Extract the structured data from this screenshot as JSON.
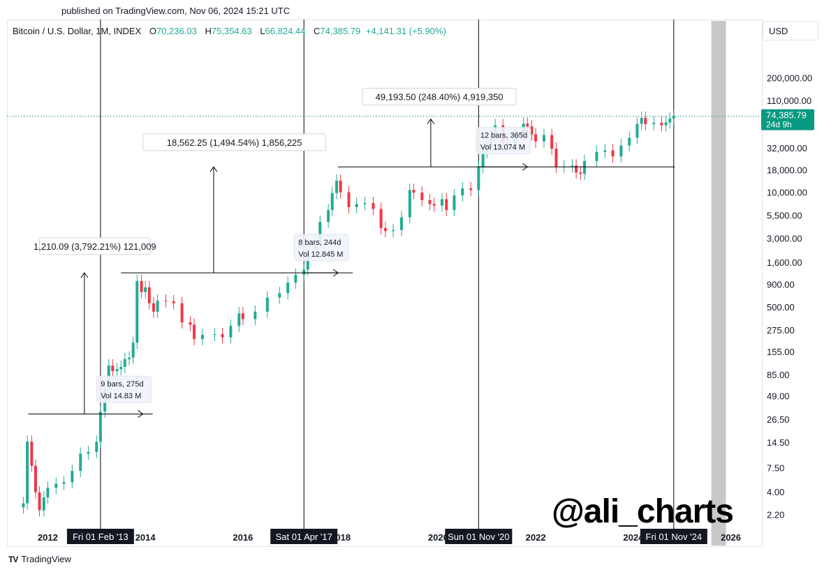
{
  "header": {
    "published": "published on TradingView.com, Nov 06, 2024 15:21 UTC"
  },
  "legend": {
    "symbol": "Bitcoin / U.S. Dollar, 1M, INDEX",
    "open_label": "O",
    "open": "70,236.03",
    "high_label": "H",
    "high": "75,354.63",
    "low_label": "L",
    "low": "66,824.44",
    "close_label": "C",
    "close": "74,385.79",
    "change": "+4,141.31 (+5.90%)"
  },
  "currency": "USD",
  "watermark": "@ali_charts",
  "brand": {
    "logo": "TV",
    "name": "TradingView"
  },
  "colors": {
    "up": "#22ab94",
    "down": "#f23645",
    "accent": "#089981",
    "line": "#000000",
    "shade": "#c8c8c8"
  },
  "chart_data": {
    "type": "candlestick",
    "scale": "log",
    "ylim": [
      1.6,
      520000
    ],
    "xlim": [
      2011.45,
      2026.45
    ],
    "grid": false,
    "current_price": {
      "value": 74385.79,
      "label": "74,385.79",
      "countdown": "24d 9h"
    },
    "x_ticks": [
      {
        "label": "2012",
        "x": 2012.0
      },
      {
        "label": "2014",
        "x": 2014.0
      },
      {
        "label": "2016",
        "x": 2016.0
      },
      {
        "label": "2018",
        "x": 2018.0
      },
      {
        "label": "2020",
        "x": 2020.0
      },
      {
        "label": "2022",
        "x": 2022.0
      },
      {
        "label": "2024",
        "x": 2024.0
      },
      {
        "label": "2026",
        "x": 2026.0
      }
    ],
    "y_ticks": [
      {
        "label": "200,000.00",
        "value": 200000
      },
      {
        "label": "110,000.00",
        "value": 110000
      },
      {
        "label": "32,000.00",
        "value": 32000
      },
      {
        "label": "18,000.00",
        "value": 18000
      },
      {
        "label": "10,000.00",
        "value": 10000
      },
      {
        "label": "5,500.00",
        "value": 5500
      },
      {
        "label": "3,000.00",
        "value": 3000
      },
      {
        "label": "1,600.00",
        "value": 1600
      },
      {
        "label": "900.00",
        "value": 900
      },
      {
        "label": "500.00",
        "value": 500
      },
      {
        "label": "275.00",
        "value": 275
      },
      {
        "label": "155.00",
        "value": 155
      },
      {
        "label": "85.00",
        "value": 85
      },
      {
        "label": "49.00",
        "value": 49
      },
      {
        "label": "26.50",
        "value": 26.5
      },
      {
        "label": "14.50",
        "value": 14.5
      },
      {
        "label": "7.50",
        "value": 7.5
      },
      {
        "label": "4.00",
        "value": 4
      },
      {
        "label": "2.20",
        "value": 2.2
      }
    ],
    "vlines": [
      {
        "x": 2013.08,
        "label": "Fri 01 Feb '13"
      },
      {
        "x": 2017.25,
        "label": "Sat 01 Apr '17"
      },
      {
        "x": 2020.83,
        "label": "Sun 01 Nov '20"
      },
      {
        "x": 2024.83,
        "label": "Fri 01 Nov '24"
      }
    ],
    "shade_band": {
      "x0": 2025.6,
      "x1": 2025.9
    },
    "projections": [
      {
        "label": "1,210.09 (3,792.21%) 121,009",
        "x0": 2011.6,
        "x1": 2014.15,
        "y_low": 31,
        "y_high": 1241,
        "arrow_x": 2012.75,
        "box_x0": 2011.83,
        "box_x1": 2014.1,
        "box_y": 2450
      },
      {
        "label": "18,562.25 (1,494.54%) 1,856,225",
        "x0": 2013.5,
        "x1": 2018.25,
        "y_low": 1241,
        "y_high": 19800,
        "arrow_x": 2015.4,
        "box_x0": 2013.95,
        "box_x1": 2017.7,
        "box_y": 37000
      },
      {
        "label": "49,193.50 (248.40%) 4,919,350",
        "x0": 2017.95,
        "x1": 2024.85,
        "y_low": 19800,
        "y_high": 69000,
        "arrow_x": 2019.85,
        "box_x0": 2018.45,
        "box_x1": 2021.6,
        "box_y": 122000
      }
    ],
    "measures": [
      {
        "bars": "9 bars, 275d",
        "vol": "Vol 14.83 M",
        "x0": 2013.08,
        "x1": 2013.95,
        "y": 31,
        "box_x0": 2013.0,
        "box_y": 60
      },
      {
        "bars": "8 bars, 244d",
        "vol": "Vol 12.845 M",
        "x0": 2017.25,
        "x1": 2017.95,
        "y": 1241,
        "box_x0": 2017.05,
        "box_y": 2450
      },
      {
        "bars": "12 bars, 365d",
        "vol": "Vol 13.074 M",
        "x0": 2020.83,
        "x1": 2021.83,
        "y": 19800,
        "box_x0": 2020.78,
        "box_y": 40000
      }
    ],
    "candles_yearly_anchors": [
      [
        2011.5,
        3.0
      ],
      [
        2011.58,
        15
      ],
      [
        2011.67,
        8
      ],
      [
        2011.75,
        4
      ],
      [
        2011.83,
        2.5
      ],
      [
        2011.92,
        3.5
      ],
      [
        2012.0,
        4.5
      ],
      [
        2012.17,
        5
      ],
      [
        2012.33,
        5.2
      ],
      [
        2012.5,
        7
      ],
      [
        2012.67,
        11
      ],
      [
        2012.83,
        11.5
      ],
      [
        2013.0,
        15
      ],
      [
        2013.08,
        33
      ],
      [
        2013.17,
        60
      ],
      [
        2013.25,
        110
      ],
      [
        2013.33,
        95
      ],
      [
        2013.42,
        100
      ],
      [
        2013.5,
        106
      ],
      [
        2013.58,
        130
      ],
      [
        2013.67,
        135
      ],
      [
        2013.75,
        200
      ],
      [
        2013.83,
        1000
      ],
      [
        2013.92,
        750
      ],
      [
        2014.0,
        850
      ],
      [
        2014.08,
        560
      ],
      [
        2014.17,
        450
      ],
      [
        2014.25,
        600
      ],
      [
        2014.42,
        590
      ],
      [
        2014.58,
        560
      ],
      [
        2014.75,
        340
      ],
      [
        2014.92,
        320
      ],
      [
        2015.0,
        220
      ],
      [
        2015.17,
        245
      ],
      [
        2015.42,
        250
      ],
      [
        2015.58,
        230
      ],
      [
        2015.75,
        310
      ],
      [
        2015.92,
        430
      ],
      [
        2016.0,
        370
      ],
      [
        2016.25,
        450
      ],
      [
        2016.5,
        650
      ],
      [
        2016.75,
        730
      ],
      [
        2016.92,
        960
      ],
      [
        2017.08,
        1180
      ],
      [
        2017.25,
        1350
      ],
      [
        2017.33,
        2300
      ],
      [
        2017.5,
        2800
      ],
      [
        2017.58,
        4700
      ],
      [
        2017.75,
        6400
      ],
      [
        2017.83,
        10000
      ],
      [
        2017.92,
        13800
      ],
      [
        2018.0,
        10200
      ],
      [
        2018.17,
        6900
      ],
      [
        2018.33,
        7500
      ],
      [
        2018.5,
        7700
      ],
      [
        2018.67,
        6600
      ],
      [
        2018.83,
        4000
      ],
      [
        2018.92,
        3700
      ],
      [
        2019.08,
        3800
      ],
      [
        2019.25,
        5300
      ],
      [
        2019.42,
        10800
      ],
      [
        2019.5,
        10100
      ],
      [
        2019.67,
        8300
      ],
      [
        2019.83,
        7500
      ],
      [
        2019.92,
        7200
      ],
      [
        2020.08,
        8500
      ],
      [
        2020.17,
        6400
      ],
      [
        2020.33,
        9400
      ],
      [
        2020.5,
        11300
      ],
      [
        2020.67,
        10800
      ],
      [
        2020.83,
        19700
      ],
      [
        2020.92,
        29000
      ],
      [
        2021.0,
        33100
      ],
      [
        2021.08,
        45000
      ],
      [
        2021.17,
        58700
      ],
      [
        2021.33,
        37300
      ],
      [
        2021.42,
        35000
      ],
      [
        2021.58,
        47000
      ],
      [
        2021.75,
        61300
      ],
      [
        2021.83,
        57000
      ],
      [
        2021.92,
        46300
      ],
      [
        2022.0,
        38500
      ],
      [
        2022.17,
        45500
      ],
      [
        2022.33,
        31800
      ],
      [
        2022.42,
        19900
      ],
      [
        2022.58,
        20000
      ],
      [
        2022.75,
        20500
      ],
      [
        2022.83,
        17100
      ],
      [
        2022.92,
        16500
      ],
      [
        2023.0,
        23100
      ],
      [
        2023.25,
        29300
      ],
      [
        2023.42,
        30500
      ],
      [
        2023.58,
        26000
      ],
      [
        2023.75,
        34600
      ],
      [
        2023.92,
        42300
      ],
      [
        2024.08,
        61100
      ],
      [
        2024.17,
        71300
      ],
      [
        2024.25,
        60600
      ],
      [
        2024.42,
        62700
      ],
      [
        2024.58,
        58900
      ],
      [
        2024.67,
        63300
      ],
      [
        2024.75,
        70200
      ],
      [
        2024.83,
        74400
      ]
    ]
  }
}
